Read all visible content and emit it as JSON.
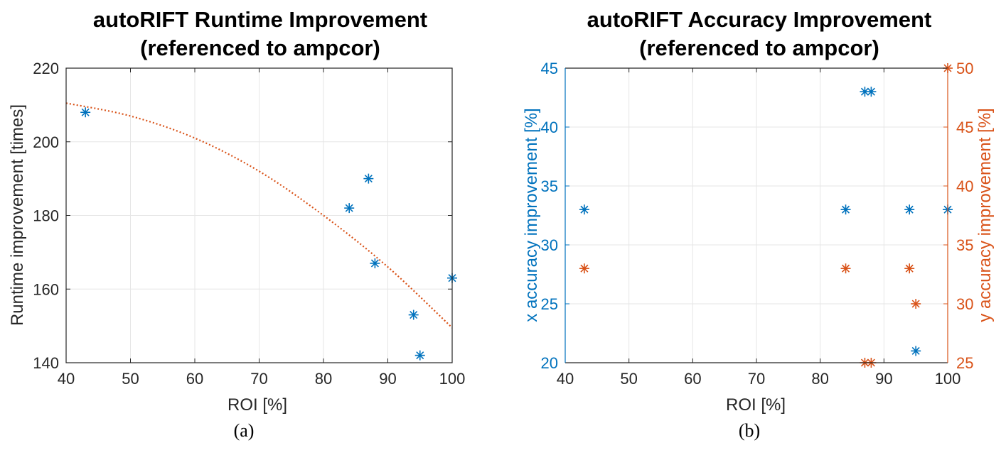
{
  "chart_data": [
    {
      "type": "scatter",
      "title": "autoRIFT Runtime Improvement",
      "subtitle": "(referenced to ampcor)",
      "xlabel": "ROI [%]",
      "ylabel": "Runtime improvement [times]",
      "xlim": [
        40,
        100
      ],
      "ylim": [
        140,
        220
      ],
      "xticks": [
        40,
        50,
        60,
        70,
        80,
        90,
        100
      ],
      "yticks": [
        140,
        160,
        180,
        200,
        220
      ],
      "grid": true,
      "colors": {
        "points": "#0072BD",
        "fit": "#D95319"
      },
      "points": [
        {
          "x": 43,
          "y": 208
        },
        {
          "x": 84,
          "y": 182
        },
        {
          "x": 87,
          "y": 190
        },
        {
          "x": 88,
          "y": 167
        },
        {
          "x": 94,
          "y": 153
        },
        {
          "x": 95,
          "y": 142
        },
        {
          "x": 100,
          "y": 163
        }
      ],
      "fit_curve": {
        "style": "dotted",
        "x": [
          40,
          50,
          60,
          70,
          80,
          90,
          100
        ],
        "y": [
          210.5,
          207,
          201,
          192,
          180,
          166,
          149.5
        ]
      }
    },
    {
      "type": "scatter",
      "title": "autoRIFT Accuracy Improvement",
      "subtitle": "(referenced to ampcor)",
      "xlabel": "ROI [%]",
      "ylabel_left": "x accuracy improvement [%]",
      "ylabel_right": "y accuracy improvement [%]",
      "xlim": [
        40,
        100
      ],
      "ylim_left": [
        20,
        45
      ],
      "ylim_right": [
        25,
        50
      ],
      "xticks": [
        40,
        50,
        60,
        70,
        80,
        90,
        100
      ],
      "yticks_left": [
        20,
        25,
        30,
        35,
        40,
        45
      ],
      "yticks_right": [
        25,
        30,
        35,
        40,
        45,
        50
      ],
      "grid": true,
      "colors": {
        "left": "#0072BD",
        "right": "#D95319"
      },
      "series": [
        {
          "axis": "left",
          "points": [
            {
              "x": 43,
              "y": 33
            },
            {
              "x": 84,
              "y": 33
            },
            {
              "x": 87,
              "y": 43
            },
            {
              "x": 88,
              "y": 43
            },
            {
              "x": 94,
              "y": 33
            },
            {
              "x": 95,
              "y": 21
            },
            {
              "x": 100,
              "y": 33
            }
          ]
        },
        {
          "axis": "right",
          "points": [
            {
              "x": 43,
              "y": 33
            },
            {
              "x": 84,
              "y": 33
            },
            {
              "x": 87,
              "y": 25
            },
            {
              "x": 88,
              "y": 25
            },
            {
              "x": 94,
              "y": 33
            },
            {
              "x": 95,
              "y": 30
            },
            {
              "x": 100,
              "y": 50
            }
          ]
        }
      ]
    }
  ],
  "captions": {
    "a": "(a)",
    "b": "(b)"
  }
}
